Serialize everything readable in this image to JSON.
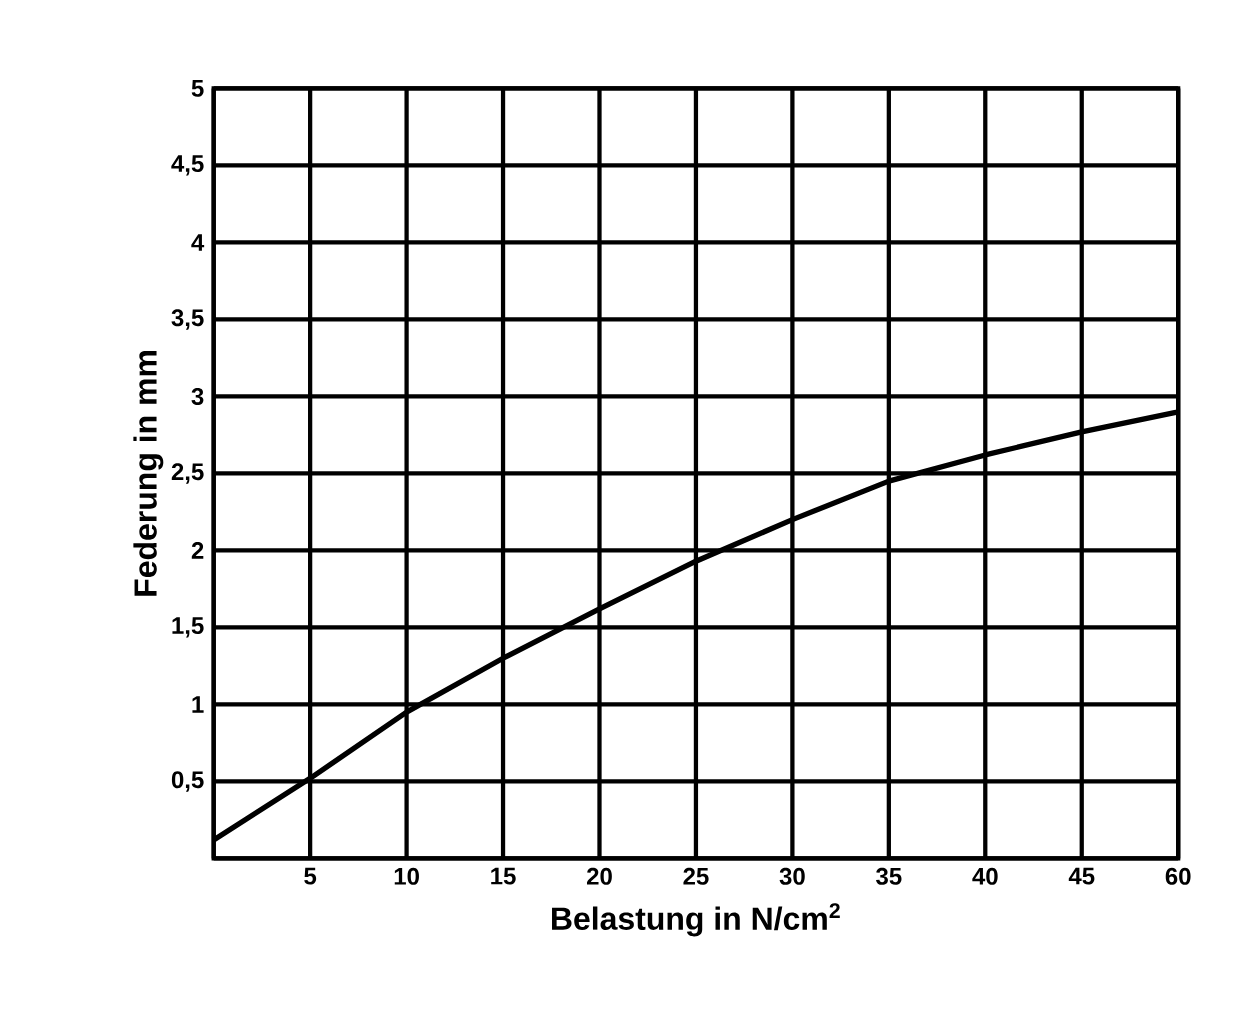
{
  "chart_data": {
    "type": "line",
    "xlabel": "Belastung in N/cm$^{2}$",
    "ylabel": "Federung in mm",
    "categories": [
      null,
      "5",
      "10",
      "15",
      "20",
      "25",
      "30",
      "35",
      "40",
      "45",
      "60"
    ],
    "series": [
      {
        "color": "#000000",
        "values": [
          0.12,
          0.52,
          0.95,
          1.3,
          1.62,
          1.93,
          2.2,
          2.45,
          2.62,
          2.77,
          2.9
        ]
      }
    ],
    "ylim": [
      0,
      5
    ],
    "yticks": [
      {
        "value": 0,
        "label": null
      },
      {
        "value": 0.5,
        "label": "0,5"
      },
      1,
      {
        "value": 1.5,
        "label": "1,5"
      },
      2,
      {
        "value": 2.5,
        "label": "2,5"
      },
      3,
      {
        "value": 3.5,
        "label": "3,5"
      },
      4,
      {
        "value": 4.5,
        "label": "4,5"
      },
      5
    ],
    "grid": true,
    "marker": "none",
    "line_style": "solid"
  }
}
